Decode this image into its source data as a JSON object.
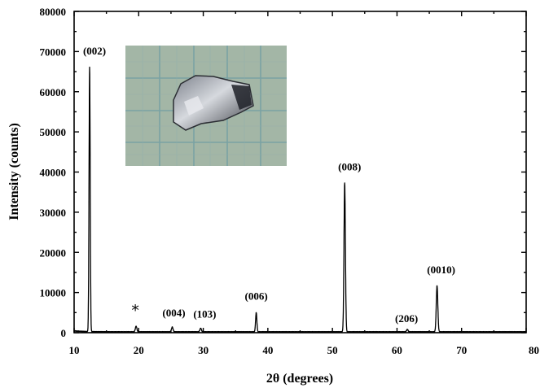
{
  "chart_data": {
    "type": "line",
    "xlabel": "2θ (degrees)",
    "ylabel": "Intensity (counts)",
    "xlim": [
      10,
      80
    ],
    "ylim": [
      0,
      80000
    ],
    "x_ticks": [
      10,
      20,
      30,
      40,
      50,
      60,
      70,
      80
    ],
    "x_tick_labels": [
      "10",
      "20",
      "30",
      "40",
      "50",
      "60",
      "70",
      "80"
    ],
    "y_ticks": [
      0,
      10000,
      20000,
      30000,
      40000,
      50000,
      60000,
      70000,
      80000
    ],
    "y_tick_labels": [
      "0",
      "10000",
      "20000",
      "30000",
      "40000",
      "50000",
      "60000",
      "70000",
      "80000"
    ],
    "grid": false,
    "baseline": 200,
    "peaks": [
      {
        "x": 12.4,
        "y": 65800,
        "label": "(002)"
      },
      {
        "x": 19.6,
        "y": 1400,
        "label": "*"
      },
      {
        "x": 25.2,
        "y": 1200,
        "label": "(004)"
      },
      {
        "x": 29.6,
        "y": 900,
        "label": "(103)"
      },
      {
        "x": 38.2,
        "y": 4800,
        "label": "(006)"
      },
      {
        "x": 51.9,
        "y": 37000,
        "label": "(008)"
      },
      {
        "x": 61.6,
        "y": 600,
        "label": "(206)"
      },
      {
        "x": 66.2,
        "y": 11500,
        "label": "(0010)"
      }
    ],
    "inset": "photo of crystal on millimetre grid paper"
  },
  "colors": {
    "trace": "#000000",
    "inset_grid_bg": "#9fb3a2",
    "inset_grid_line": "#6f9aa0",
    "crystal_dark": "#3c3f47",
    "crystal_light": "#c9ccd3"
  }
}
